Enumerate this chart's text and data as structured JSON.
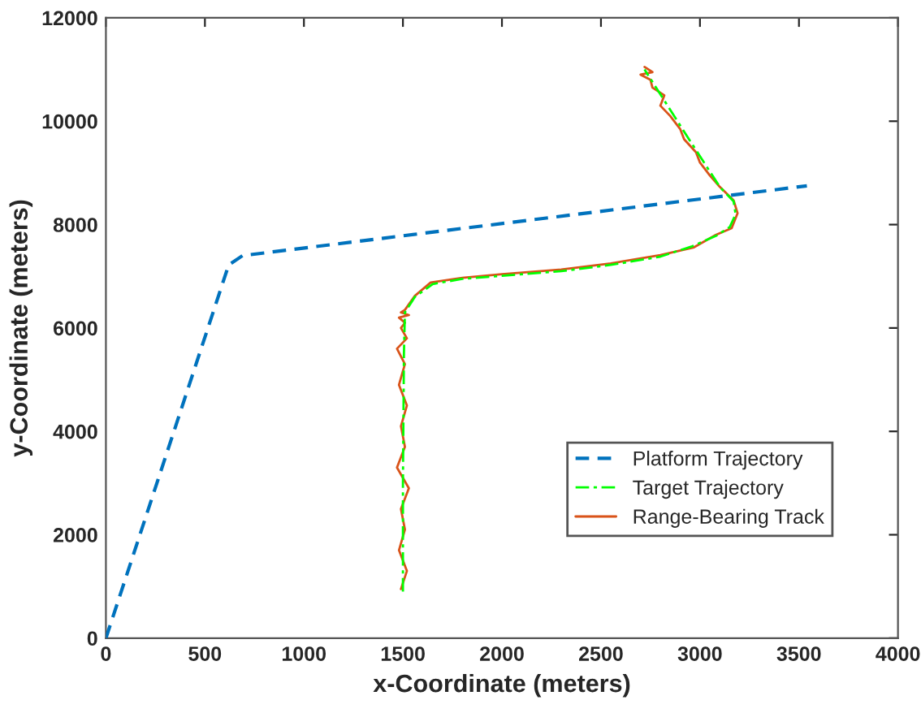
{
  "chart_data": {
    "type": "line",
    "xlabel": "x-Coordinate (meters)",
    "ylabel": "y-Coordinate (meters)",
    "xlim": [
      0,
      4000
    ],
    "ylim": [
      0,
      12000
    ],
    "xticks": [
      0,
      500,
      1000,
      1500,
      2000,
      2500,
      3000,
      3500,
      4000
    ],
    "yticks": [
      0,
      2000,
      4000,
      6000,
      8000,
      10000,
      12000
    ],
    "grid": false,
    "legend": "right",
    "series": [
      {
        "name": "Platform Trajectory",
        "color": "#0072bd",
        "line_style": "dashed",
        "x": [
          0,
          620,
          690,
          3540
        ],
        "values": [
          0,
          7220,
          7400,
          8750
        ]
      },
      {
        "name": "Target Trajectory",
        "color": "#00ff00",
        "line_style": "dashdot",
        "x": [
          1500,
          1500,
          1505,
          1510,
          1560,
          1650,
          1800,
          2000,
          2300,
          2550,
          2800,
          2960,
          3080,
          3150,
          3180,
          3170,
          3100,
          2960,
          2820,
          2720
        ],
        "values": [
          900,
          3000,
          5500,
          6300,
          6600,
          6850,
          6950,
          7010,
          7100,
          7220,
          7380,
          7580,
          7780,
          7950,
          8200,
          8450,
          8730,
          9560,
          10400,
          11000
        ]
      },
      {
        "name": "Range-Bearing Track",
        "color": "#d95319",
        "line_style": "solid",
        "x": [
          1490,
          1520,
          1480,
          1510,
          1490,
          1530,
          1470,
          1510,
          1490,
          1520,
          1480,
          1510,
          1470,
          1520,
          1490,
          1510,
          1480,
          1530,
          1490,
          1510,
          1560,
          1640,
          1800,
          2000,
          2300,
          2550,
          2800,
          2970,
          3080,
          3160,
          3190,
          3170,
          3100,
          3050,
          3000,
          2980,
          2920,
          2900,
          2850,
          2800,
          2820,
          2760,
          2750,
          2700,
          2760,
          2720
        ],
        "values": [
          950,
          1300,
          1700,
          2100,
          2500,
          2900,
          3300,
          3700,
          4100,
          4500,
          4900,
          5300,
          5600,
          5800,
          6000,
          6100,
          6200,
          6250,
          6300,
          6350,
          6620,
          6880,
          6970,
          7040,
          7130,
          7250,
          7410,
          7560,
          7800,
          7930,
          8220,
          8470,
          8730,
          8950,
          9200,
          9400,
          9650,
          9850,
          10100,
          10300,
          10500,
          10650,
          10800,
          10900,
          10950,
          11050
        ]
      }
    ]
  }
}
